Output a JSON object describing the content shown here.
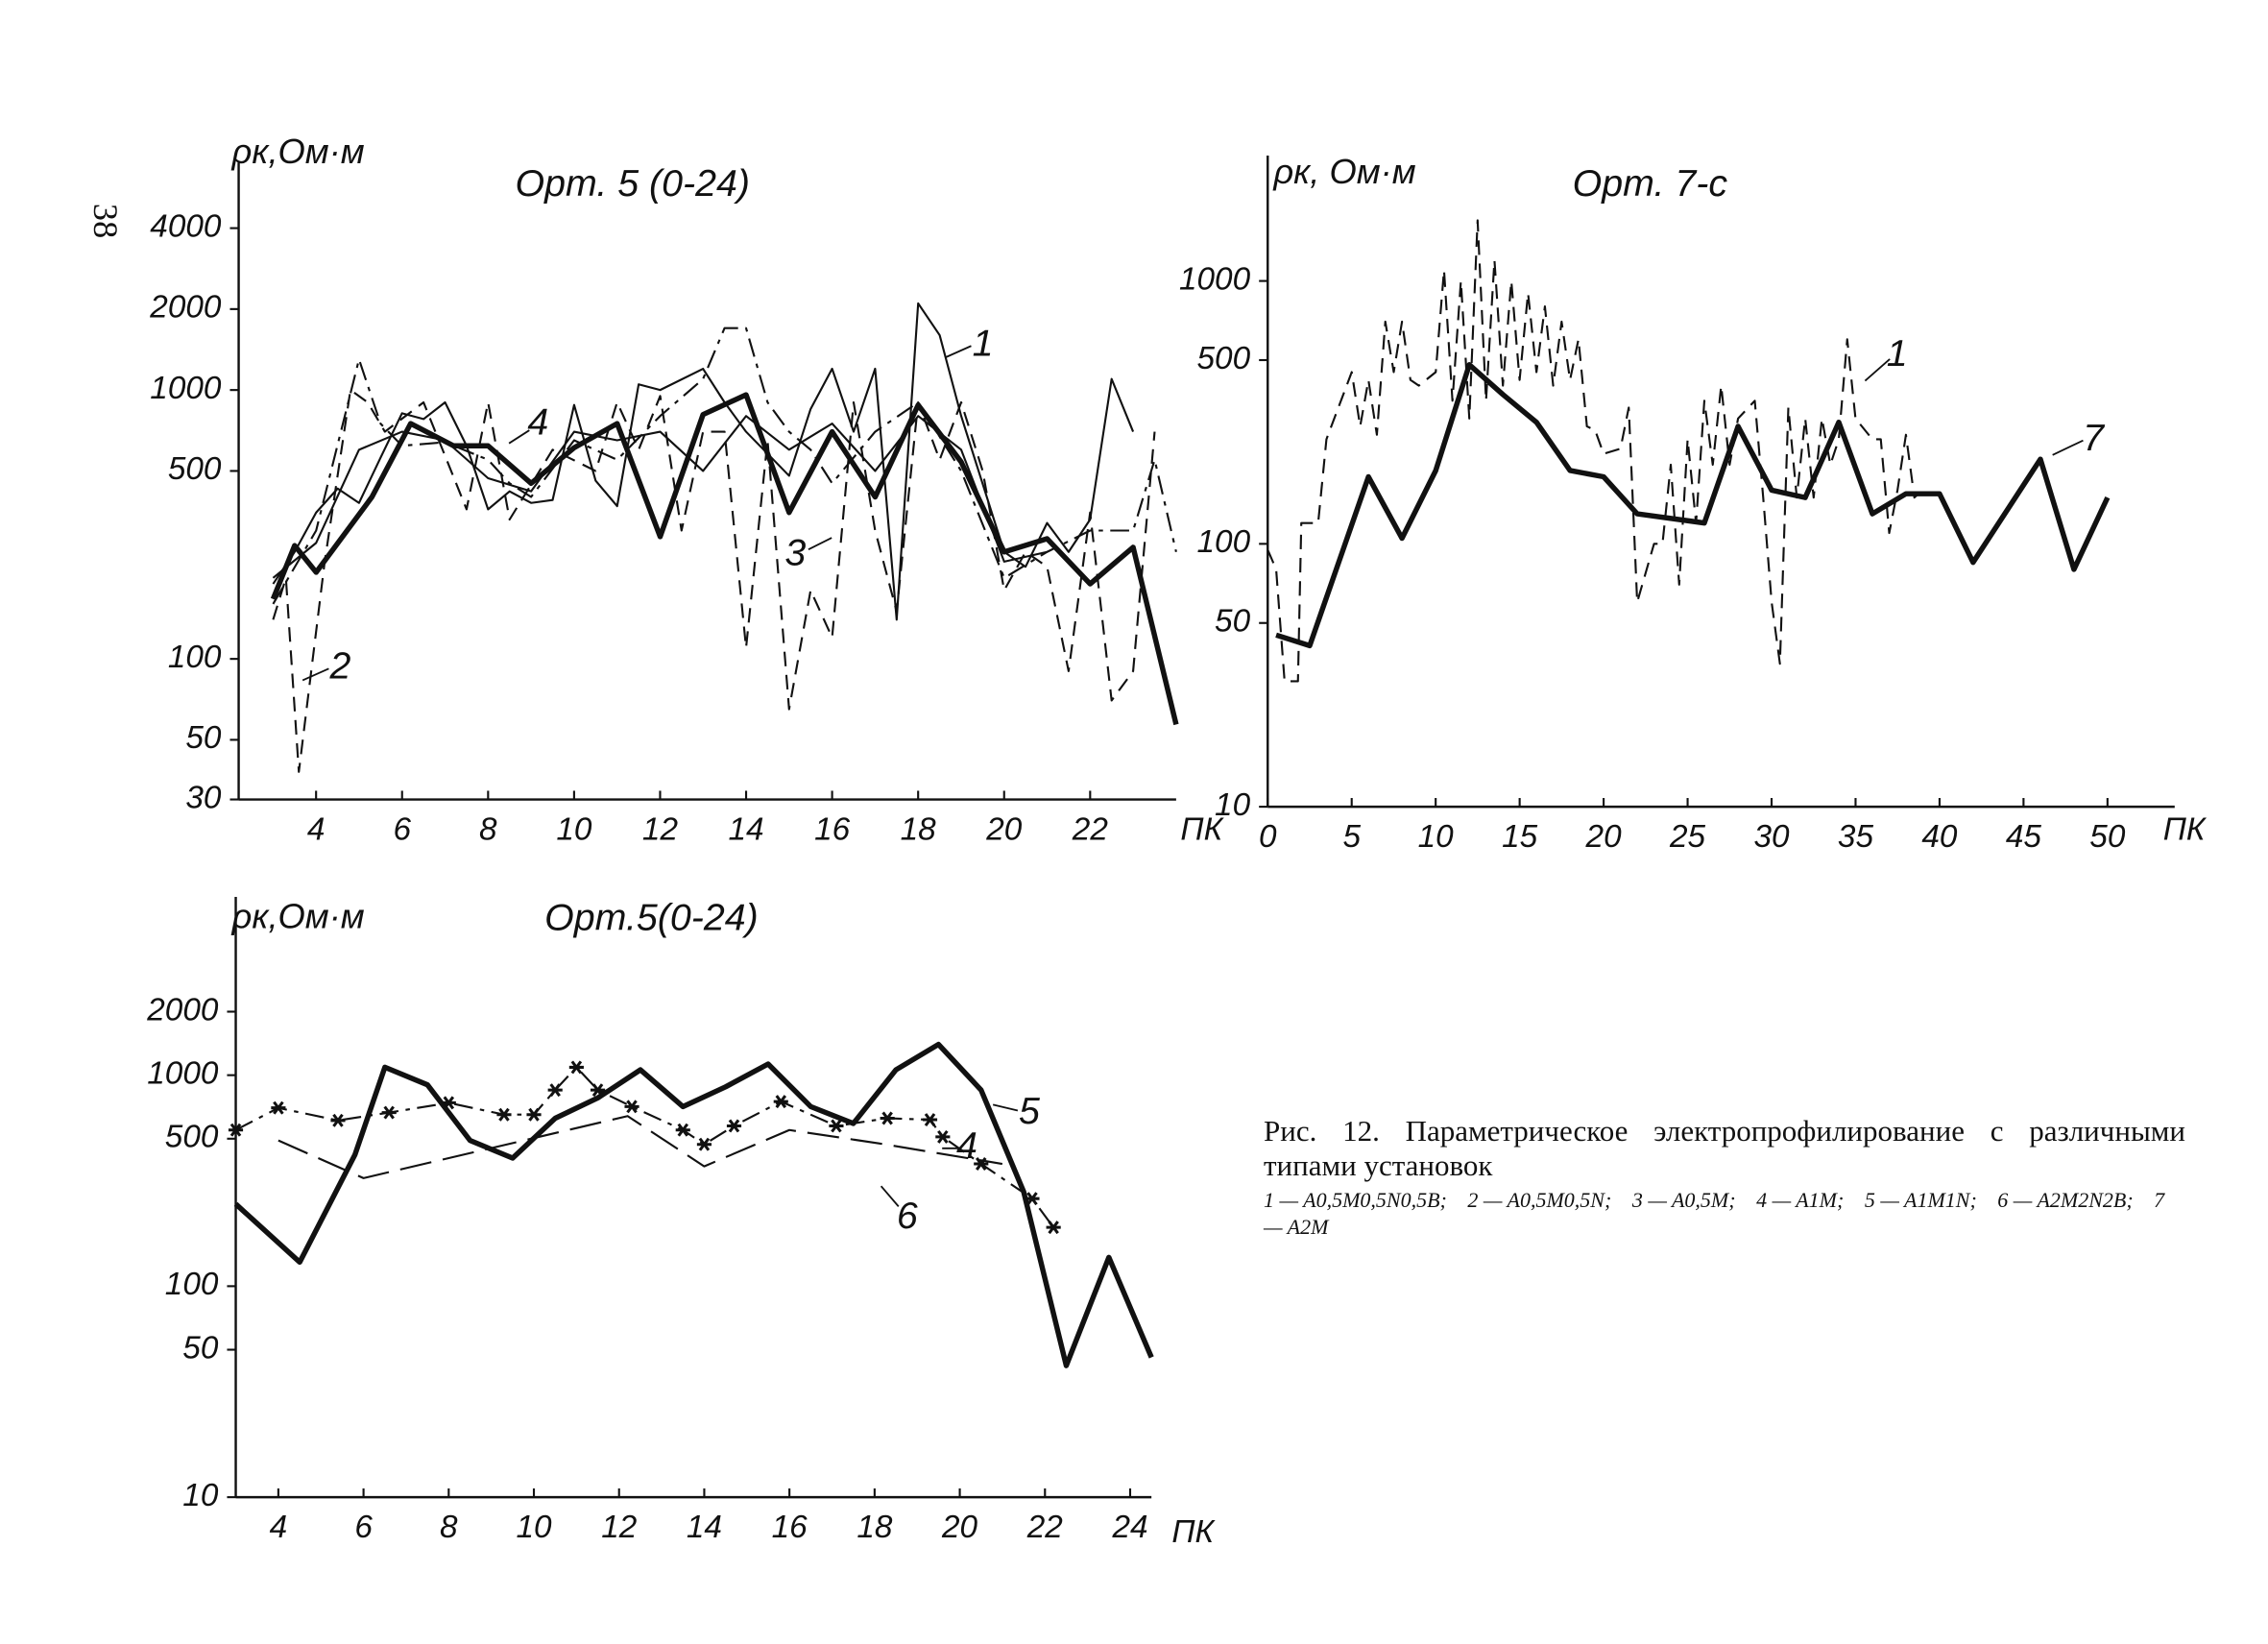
{
  "page_number": "38",
  "chart_data": [
    {
      "type": "line",
      "title": "Орт. 5 (0-24)",
      "ylabel": "ρк,Ом·м",
      "xlabel": "ПК",
      "log_y": true,
      "xlim": [
        2.2,
        24
      ],
      "ylim": [
        30,
        7000
      ],
      "xticks": [
        4,
        6,
        8,
        10,
        12,
        14,
        16,
        18,
        20,
        22
      ],
      "yticks": [
        30,
        50,
        100,
        500,
        1000,
        2000,
        4000
      ],
      "series": [
        {
          "name": "1",
          "color": "#111",
          "style": "solid",
          "linewidth": 1.4,
          "x": [
            3,
            3.5,
            4,
            4.5,
            5,
            5.5,
            6,
            6.5,
            7,
            7.5,
            8,
            8.5,
            9,
            9.5,
            10,
            10.5,
            11,
            11.5,
            12,
            13,
            13.5,
            14,
            15,
            15.5,
            16,
            16.5,
            17,
            17.5,
            18,
            18.5,
            19,
            20,
            20.5,
            21,
            21.5,
            22,
            22.5,
            23
          ],
          "values": [
            190,
            250,
            350,
            430,
            380,
            560,
            820,
            780,
            900,
            620,
            360,
            420,
            380,
            390,
            880,
            460,
            370,
            1050,
            1000,
            1200,
            900,
            700,
            480,
            850,
            1200,
            700,
            1200,
            140,
            2100,
            1600,
            800,
            250,
            220,
            320,
            250,
            330,
            1100,
            700
          ]
        },
        {
          "name": "2",
          "color": "#111",
          "style": "dashed",
          "linewidth": 1.4,
          "x": [
            3,
            3.3,
            3.6,
            4.2,
            4.8,
            5.2,
            5.6,
            6.5,
            7.5,
            8,
            8.5,
            9.5,
            10.5,
            11,
            11.5,
            12,
            12.5,
            13,
            13.5,
            14,
            14.5,
            15,
            15.5,
            16,
            16.5,
            17,
            17.5,
            18,
            18.5,
            19,
            19.5,
            20,
            20.5,
            21,
            21.5,
            22,
            22.5,
            23,
            23.5
          ],
          "values": [
            140,
            200,
            38,
            230,
            1000,
            900,
            700,
            900,
            360,
            900,
            330,
            600,
            500,
            900,
            600,
            950,
            300,
            700,
            700,
            110,
            650,
            65,
            180,
            120,
            900,
            300,
            150,
            900,
            550,
            900,
            500,
            180,
            250,
            220,
            90,
            350,
            70,
            90,
            700
          ]
        },
        {
          "name": "3",
          "color": "#111",
          "style": "dashdot",
          "linewidth": 1.4,
          "x": [
            3,
            4,
            5,
            5.5,
            6,
            7,
            8,
            8.5,
            9,
            10,
            11,
            12,
            13,
            13.5,
            14,
            14.5,
            15,
            15.5,
            16,
            17,
            18,
            19,
            20,
            21,
            22,
            23,
            23.5,
            24
          ],
          "values": [
            160,
            300,
            1300,
            750,
            620,
            640,
            550,
            450,
            400,
            650,
            550,
            800,
            1100,
            1700,
            1700,
            900,
            700,
            600,
            450,
            700,
            900,
            500,
            200,
            250,
            300,
            300,
            550,
            250
          ]
        },
        {
          "name": "4",
          "color": "#111",
          "style": "solid",
          "linewidth": 1.4,
          "x": [
            3,
            4,
            5,
            6,
            7,
            8,
            9,
            10,
            11,
            12,
            13,
            14,
            15,
            16,
            17,
            18,
            19,
            20,
            21
          ],
          "values": [
            200,
            270,
            600,
            700,
            650,
            470,
            420,
            700,
            650,
            700,
            500,
            800,
            600,
            750,
            500,
            800,
            600,
            230,
            250
          ]
        },
        {
          "color": "#111",
          "style": "solid",
          "linewidth": 3.6,
          "x": [
            3,
            3.5,
            4,
            5.3,
            6.2,
            7.2,
            8,
            9,
            10,
            11,
            12,
            13,
            14,
            15,
            16,
            17,
            18,
            19,
            20,
            21,
            22,
            23,
            24
          ],
          "values": [
            167,
            264,
            210,
            400,
            750,
            620,
            620,
            450,
            610,
            750,
            285,
            810,
            960,
            350,
            700,
            400,
            880,
            540,
            250,
            280,
            190,
            260,
            57
          ]
        }
      ]
    },
    {
      "type": "line",
      "title": "Орт. 7-с",
      "ylabel": "ρк, Ом·м",
      "xlabel": "ПК",
      "log_y": true,
      "xlim": [
        0,
        54
      ],
      "ylim": [
        10,
        3000
      ],
      "xticks": [
        0,
        5,
        10,
        15,
        20,
        25,
        30,
        35,
        40,
        45,
        50
      ],
      "yticks": [
        10,
        50,
        100,
        500,
        1000
      ],
      "series": [
        {
          "name": "1",
          "color": "#111",
          "style": "dashed",
          "linewidth": 1.4,
          "x": [
            0,
            0.5,
            1,
            1.8,
            2,
            3,
            3.5,
            5,
            5.5,
            6,
            6.5,
            7,
            7.5,
            8,
            8.5,
            9,
            10,
            10.5,
            11,
            11.5,
            12,
            12.5,
            13,
            13.5,
            14,
            14.5,
            15,
            15.5,
            16,
            16.5,
            17,
            17.5,
            18,
            18.5,
            19,
            19.5,
            20,
            21,
            21.5,
            22,
            23,
            23.5,
            24,
            24.5,
            25,
            25.5,
            26,
            26.5,
            27,
            27.5,
            28,
            29,
            29.5,
            30,
            30.5,
            31,
            31.5,
            32,
            32.5,
            33,
            33.5,
            34,
            34.5,
            35,
            36,
            36.5,
            37,
            37.5,
            38,
            38.5,
            39
          ],
          "values": [
            95,
            80,
            30,
            30,
            120,
            120,
            250,
            450,
            280,
            420,
            260,
            700,
            450,
            700,
            420,
            400,
            450,
            1100,
            350,
            1000,
            300,
            1700,
            350,
            1200,
            400,
            1000,
            420,
            900,
            450,
            800,
            400,
            700,
            420,
            600,
            280,
            270,
            220,
            230,
            330,
            60,
            100,
            100,
            200,
            70,
            250,
            120,
            350,
            200,
            400,
            200,
            300,
            350,
            150,
            60,
            35,
            330,
            150,
            300,
            150,
            300,
            200,
            250,
            600,
            300,
            250,
            250,
            110,
            160,
            260,
            150,
            160
          ]
        },
        {
          "name": "7",
          "color": "#111",
          "style": "solid",
          "linewidth": 3.6,
          "x": [
            0.5,
            2.5,
            6,
            8,
            10,
            12,
            14,
            16,
            18,
            20,
            22,
            26,
            28,
            30,
            32,
            34,
            36,
            38,
            40,
            42,
            46,
            48,
            50
          ],
          "values": [
            45,
            41,
            180,
            105,
            190,
            480,
            370,
            290,
            190,
            180,
            130,
            120,
            280,
            160,
            150,
            290,
            130,
            155,
            155,
            85,
            210,
            80,
            150
          ]
        }
      ]
    },
    {
      "type": "line",
      "title": "Орт.5(0-24)",
      "ylabel": "ρк,Ом·м",
      "xlabel": "ПК",
      "log_y": true,
      "xlim": [
        3,
        24.5
      ],
      "ylim": [
        10,
        7000
      ],
      "xticks": [
        4,
        6,
        8,
        10,
        12,
        14,
        16,
        18,
        20,
        22,
        24
      ],
      "yticks": [
        10,
        50,
        100,
        500,
        1000,
        2000
      ],
      "series": [
        {
          "name": "5",
          "color": "#111",
          "style": "solid",
          "linewidth": 3.6,
          "x": [
            3,
            4.5,
            5.8,
            6.5,
            7.5,
            8.5,
            9.5,
            10.5,
            11.5,
            12.5,
            13.5,
            14.5,
            15.5,
            16.5,
            17.5,
            18.5,
            19.5,
            20.5,
            21.5,
            22.5,
            23.5,
            24.5
          ],
          "values": [
            245,
            130,
            420,
            1090,
            900,
            490,
            405,
            625,
            780,
            1060,
            710,
            880,
            1130,
            710,
            590,
            1060,
            1400,
            850,
            280,
            42,
            137,
            46
          ]
        },
        {
          "name": "4",
          "color": "#111",
          "style": "dashdot",
          "linewidth": 1.4,
          "marker": "asterisk",
          "x": [
            3,
            4,
            5.4,
            6.6,
            8,
            9.3,
            10,
            10.5,
            11,
            11.5,
            12.3,
            13.5,
            14,
            14.7,
            15.8,
            17.1,
            18.3,
            19.3,
            19.6,
            20.5,
            21.7,
            22.2
          ],
          "values": [
            550,
            700,
            610,
            665,
            740,
            650,
            650,
            850,
            1090,
            850,
            710,
            550,
            470,
            575,
            750,
            575,
            625,
            615,
            510,
            380,
            260,
            190
          ]
        },
        {
          "name": "6",
          "color": "#111",
          "style": "longdash",
          "linewidth": 1.4,
          "x": [
            4,
            6,
            12.2,
            14,
            16,
            18.1,
            21
          ],
          "values": [
            490,
            325,
            640,
            370,
            550,
            475,
            380
          ]
        }
      ]
    }
  ],
  "caption": {
    "title": "Рис. 12. Параметрическое электропрофилирование с различными типами установок",
    "legend": [
      "1 — A0,5M0,5N0,5B;",
      "2 — A0,5M0,5N;",
      "3 — A0,5M;",
      "4 — A1M;",
      "5 — A1M1N;",
      "6 — A2M2N2B;",
      "7 — A2M"
    ]
  }
}
